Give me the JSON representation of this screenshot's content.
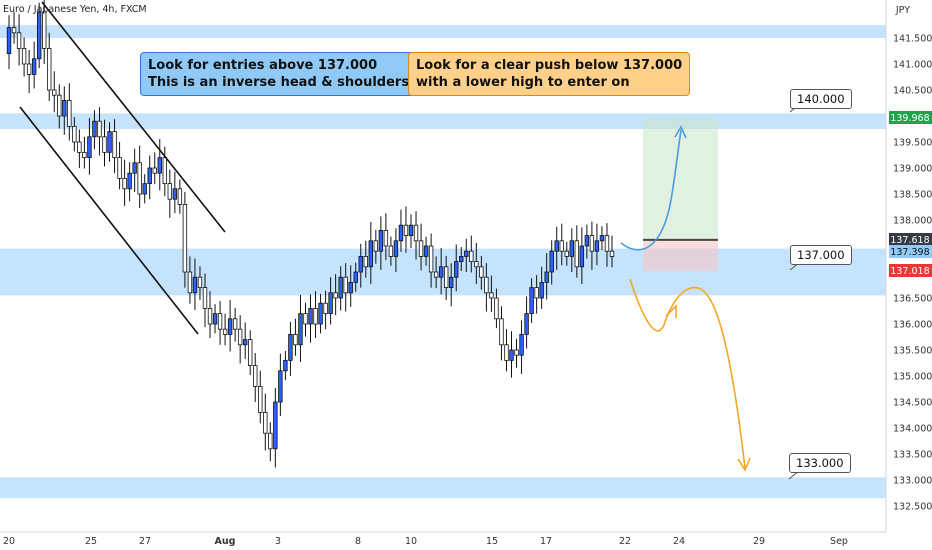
{
  "header": {
    "symbol_title": "Euro / Japanese Yen, 4h, FXCM",
    "currency": "JPY"
  },
  "notes": {
    "blue_line1": "Look for entries above 137.000",
    "blue_line2": "This is an inverse head & shoulders",
    "orange_line1": "Look for a clear push below 137.000",
    "orange_line2": "with a lower high to enter on"
  },
  "callouts": {
    "level_140": "140.000",
    "level_137": "137.000",
    "level_133": "133.000"
  },
  "price_tags": {
    "target": "139.968",
    "entry": "137.618",
    "last": "137.398",
    "stop": "137.018"
  },
  "colors": {
    "up": "#2962ff",
    "down": "#ffffff",
    "zone": "#bbdefb",
    "target_tag": "#1ea54a",
    "stop_tag": "#e53935",
    "entry_tag": "#363a45",
    "last_tag": "#90caf9",
    "blue_arrow": "#4a9be0",
    "orange_arrow": "#f5a623"
  },
  "chart_data": {
    "type": "candlestick",
    "title": "Euro / Japanese Yen, 4h, FXCM",
    "y_axis": {
      "side": "right",
      "ylim": [
        132.2,
        142.3
      ],
      "ticks": [
        "141.500",
        "141.000",
        "140.500",
        "140.000",
        "139.500",
        "139.000",
        "138.500",
        "138.000",
        "137.500",
        "137.000",
        "136.500",
        "136.000",
        "135.500",
        "135.000",
        "134.500",
        "134.000",
        "133.500",
        "133.000",
        "132.500"
      ]
    },
    "x_axis": {
      "labels": [
        "20",
        "25",
        "27",
        "Aug",
        "3",
        "8",
        "10",
        "15",
        "17",
        "22",
        "24",
        "29",
        "Sep"
      ]
    },
    "zones": [
      {
        "from": 141.5,
        "to": 141.75
      },
      {
        "from": 139.75,
        "to": 140.05
      },
      {
        "from": 136.55,
        "to": 137.45
      },
      {
        "from": 132.65,
        "to": 133.05
      }
    ],
    "trendlines": "descending channel from 20 to 27 (Jul)",
    "position": {
      "entry": 137.618,
      "target": 139.968,
      "stop": 137.018
    },
    "price_path": [
      141.2,
      141.7,
      141.6,
      141.3,
      141.0,
      140.8,
      141.1,
      142.0,
      141.3,
      140.5,
      140.4,
      140.0,
      140.3,
      139.8,
      139.5,
      139.3,
      139.2,
      139.6,
      139.9,
      139.6,
      139.3,
      139.7,
      139.2,
      138.8,
      138.6,
      138.9,
      139.1,
      138.5,
      138.7,
      139.0,
      138.9,
      139.2,
      138.7,
      138.4,
      138.6,
      138.3,
      137.0,
      136.6,
      136.9,
      136.7,
      136.3,
      136.0,
      136.2,
      135.9,
      135.8,
      136.1,
      135.9,
      135.6,
      135.7,
      135.2,
      134.8,
      134.3,
      133.9,
      133.6,
      134.5,
      135.1,
      135.3,
      135.8,
      135.6,
      136.2,
      136.0,
      136.3,
      136.0,
      136.4,
      136.2,
      136.6,
      136.5,
      136.9,
      136.6,
      136.8,
      137.0,
      137.3,
      137.1,
      137.6,
      137.4,
      137.8,
      137.5,
      137.3,
      137.6,
      137.9,
      137.7,
      137.9,
      137.6,
      137.3,
      137.5,
      137.0,
      136.9,
      137.1,
      136.7,
      136.9,
      137.2,
      137.3,
      137.4,
      137.2,
      137.1,
      136.9,
      136.6,
      136.5,
      136.1,
      135.6,
      135.3,
      135.5,
      135.4,
      135.8,
      136.2,
      136.7,
      136.5,
      136.8,
      137.0,
      137.4,
      137.6,
      137.4,
      137.3,
      137.6,
      137.1,
      137.5,
      137.7,
      137.4,
      137.6,
      137.7,
      137.4,
      137.3
    ]
  }
}
